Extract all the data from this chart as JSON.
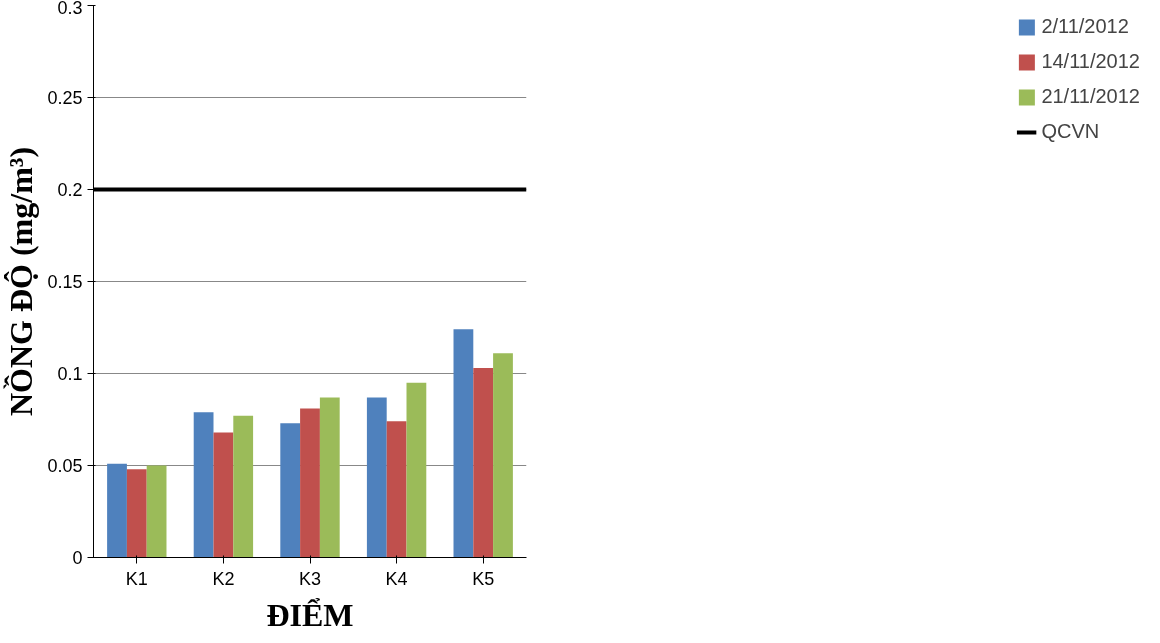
{
  "chart_data": {
    "type": "bar",
    "xlabel": "ĐIỂM",
    "ylabel": "NỒNG ĐỘ (mg/m³)",
    "categories": [
      "K1",
      "K2",
      "K3",
      "K4",
      "K5"
    ],
    "series": [
      {
        "name": "2/11/2012",
        "color": "#4f81bd",
        "values": [
          0.051,
          0.079,
          0.073,
          0.087,
          0.124
        ]
      },
      {
        "name": "14/11/2012",
        "color": "#c0504d",
        "values": [
          0.048,
          0.068,
          0.081,
          0.074,
          0.103
        ]
      },
      {
        "name": "21/11/2012",
        "color": "#9bbb59",
        "values": [
          0.05,
          0.077,
          0.087,
          0.095,
          0.111
        ]
      }
    ],
    "ylim": [
      0,
      0.3
    ],
    "yticks": [
      0,
      0.05,
      0.1,
      0.15,
      0.2,
      0.25,
      0.3
    ],
    "ref_lines": [
      {
        "axis": "y",
        "value": 0.2,
        "label": "QCVN",
        "color": "#000000"
      }
    ],
    "grid": "y",
    "legend": "right"
  }
}
